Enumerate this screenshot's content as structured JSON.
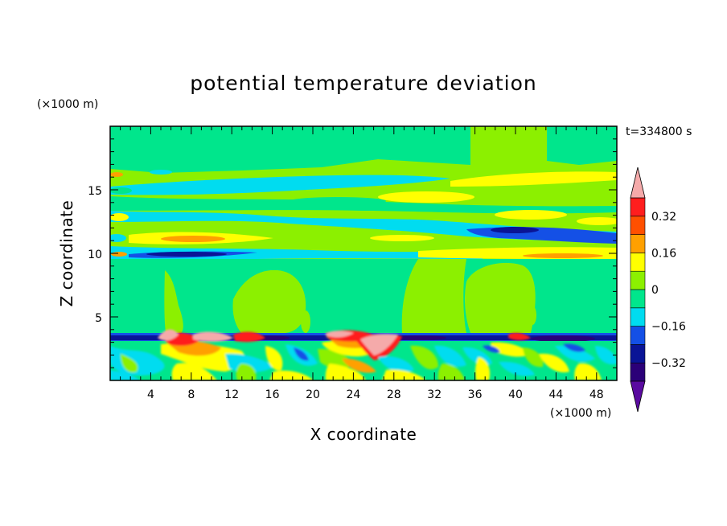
{
  "chart_data": {
    "type": "heatmap",
    "title": "potential temperature deviation",
    "xlabel": "X coordinate",
    "ylabel": "Z coordinate",
    "x_unit": "(×1000 m)",
    "y_unit": "(×1000 m)",
    "time_label": "t=334800 s",
    "xlim": [
      0,
      50
    ],
    "ylim": [
      0,
      20
    ],
    "x_ticks": [
      "4",
      "8",
      "12",
      "16",
      "20",
      "24",
      "28",
      "32",
      "36",
      "40",
      "44",
      "48"
    ],
    "y_ticks": [
      "5",
      "10",
      "15"
    ],
    "colorbar": {
      "levels": [
        -0.48,
        -0.4,
        -0.32,
        -0.24,
        -0.16,
        -0.08,
        0,
        0.08,
        0.16,
        0.24,
        0.32,
        0.4
      ],
      "colors": [
        "#5a0aa0",
        "#2b0078",
        "#0a1496",
        "#1450e6",
        "#00dcf0",
        "#00e68c",
        "#8cf000",
        "#ffff00",
        "#ffa000",
        "#ff5000",
        "#ff1e1e",
        "#f5aaaa"
      ],
      "tick_labels": [
        "0.32",
        "0.16",
        "0",
        "−0.16",
        "−0.32"
      ],
      "tick_values": [
        0.32,
        0.16,
        0,
        -0.16,
        -0.32
      ]
    },
    "bands": [
      {
        "z": [
          0,
          3
        ],
        "description": "turbulent boundary layer with mixed positive and negative deviations",
        "value_range": [
          -0.24,
          0.4
        ]
      },
      {
        "z": [
          3,
          3.6
        ],
        "description": "strong negative layer near inversion",
        "value": -0.32
      },
      {
        "z": [
          3.6,
          9.5
        ],
        "description": "near-neutral region with patches",
        "value_range": [
          -0.08,
          0.08
        ]
      },
      {
        "z": [
          9.5,
          10
        ],
        "description": "negative layer",
        "value": -0.32
      },
      {
        "z": [
          10,
          13
        ],
        "description": "alternating warm and cold waves",
        "value_range": [
          -0.32,
          0.24
        ]
      },
      {
        "z": [
          13,
          16
        ],
        "description": "weak waves",
        "value_range": [
          -0.16,
          0.16
        ]
      },
      {
        "z": [
          16,
          20
        ],
        "description": "upper region near zero",
        "value_range": [
          -0.08,
          0.08
        ]
      }
    ]
  }
}
